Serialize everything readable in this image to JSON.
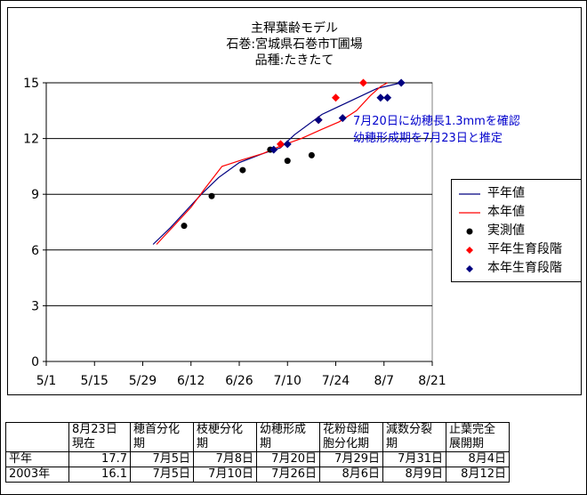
{
  "chart_data": {
    "type": "line",
    "title_lines": [
      "主稈葉齢モデル",
      "石巻:宮城県石巻市T圃場",
      "品種:たきたて"
    ],
    "y_ticks": [
      "15",
      "12",
      "9",
      "6",
      "3",
      "0"
    ],
    "x_ticks": [
      "5/1",
      "5/15",
      "5/29",
      "6/12",
      "6/26",
      "7/10",
      "7/24",
      "8/7",
      "8/21"
    ],
    "x_tick_days": [
      0,
      14,
      28,
      42,
      56,
      70,
      84,
      98,
      112
    ],
    "xlim": [
      0,
      112
    ],
    "ylim": [
      0,
      15
    ],
    "grid": "horizontal",
    "legend_position": "right",
    "series": [
      {
        "name": "平年値",
        "kind": "line",
        "color": "#000080",
        "points": [
          [
            31,
            6.3
          ],
          [
            36,
            7.2
          ],
          [
            41,
            8.2
          ],
          [
            45,
            9.0
          ],
          [
            50,
            9.9
          ],
          [
            56,
            10.7
          ],
          [
            63,
            11.2
          ],
          [
            68,
            11.5
          ],
          [
            72,
            12.2
          ],
          [
            80,
            13.3
          ],
          [
            88,
            14.0
          ],
          [
            96,
            14.7
          ],
          [
            103,
            15.0
          ]
        ]
      },
      {
        "name": "本年値",
        "kind": "line",
        "color": "#ff0000",
        "points": [
          [
            32,
            6.3
          ],
          [
            37,
            7.3
          ],
          [
            42,
            8.3
          ],
          [
            46,
            9.3
          ],
          [
            51,
            10.5
          ],
          [
            56,
            10.8
          ],
          [
            63,
            11.2
          ],
          [
            68,
            11.6
          ],
          [
            74,
            12.0
          ],
          [
            80,
            12.5
          ],
          [
            85,
            12.9
          ],
          [
            90,
            13.5
          ],
          [
            94,
            14.3
          ],
          [
            97,
            14.8
          ],
          [
            99,
            15.0
          ]
        ]
      },
      {
        "name": "実測値",
        "kind": "marker",
        "marker": "circle",
        "color": "#000000",
        "points": [
          [
            40,
            7.3
          ],
          [
            48,
            8.9
          ],
          [
            57,
            10.3
          ],
          [
            65,
            11.4
          ],
          [
            70,
            10.8
          ],
          [
            77,
            11.1
          ]
        ]
      },
      {
        "name": "平年生育段階",
        "kind": "marker",
        "marker": "diamond",
        "color": "#ff0000",
        "points": [
          [
            68,
            11.7
          ],
          [
            79,
            13.0
          ],
          [
            84,
            14.2
          ],
          [
            92,
            15.0
          ]
        ]
      },
      {
        "name": "本年生育段階",
        "kind": "marker",
        "marker": "diamond",
        "color": "#000080",
        "points": [
          [
            66,
            11.4
          ],
          [
            70,
            11.7
          ],
          [
            79,
            13.0
          ],
          [
            86,
            13.1
          ],
          [
            97,
            14.2
          ],
          [
            99,
            14.2
          ],
          [
            103,
            15.0
          ]
        ]
      }
    ],
    "annotation": [
      "7月20日に幼穂長1.3mmを確認",
      "幼穂形成期を7月23日と推定"
    ]
  },
  "table": {
    "header": [
      "",
      "8月23日\n現在",
      "穂首分化\n期",
      "枝梗分化\n期",
      "幼穂形成\n期",
      "花粉母細\n胞分化期",
      "減数分裂\n期",
      "止葉完全\n展開期"
    ],
    "rows": [
      [
        "平年",
        "17.7",
        "7月5日",
        "7月8日",
        "7月20日",
        "7月29日",
        "7月31日",
        "8月4日"
      ],
      [
        "2003年",
        "16.1",
        "7月5日",
        "7月10日",
        "7月26日",
        "8月6日",
        "8月9日",
        "8月12日"
      ]
    ]
  }
}
